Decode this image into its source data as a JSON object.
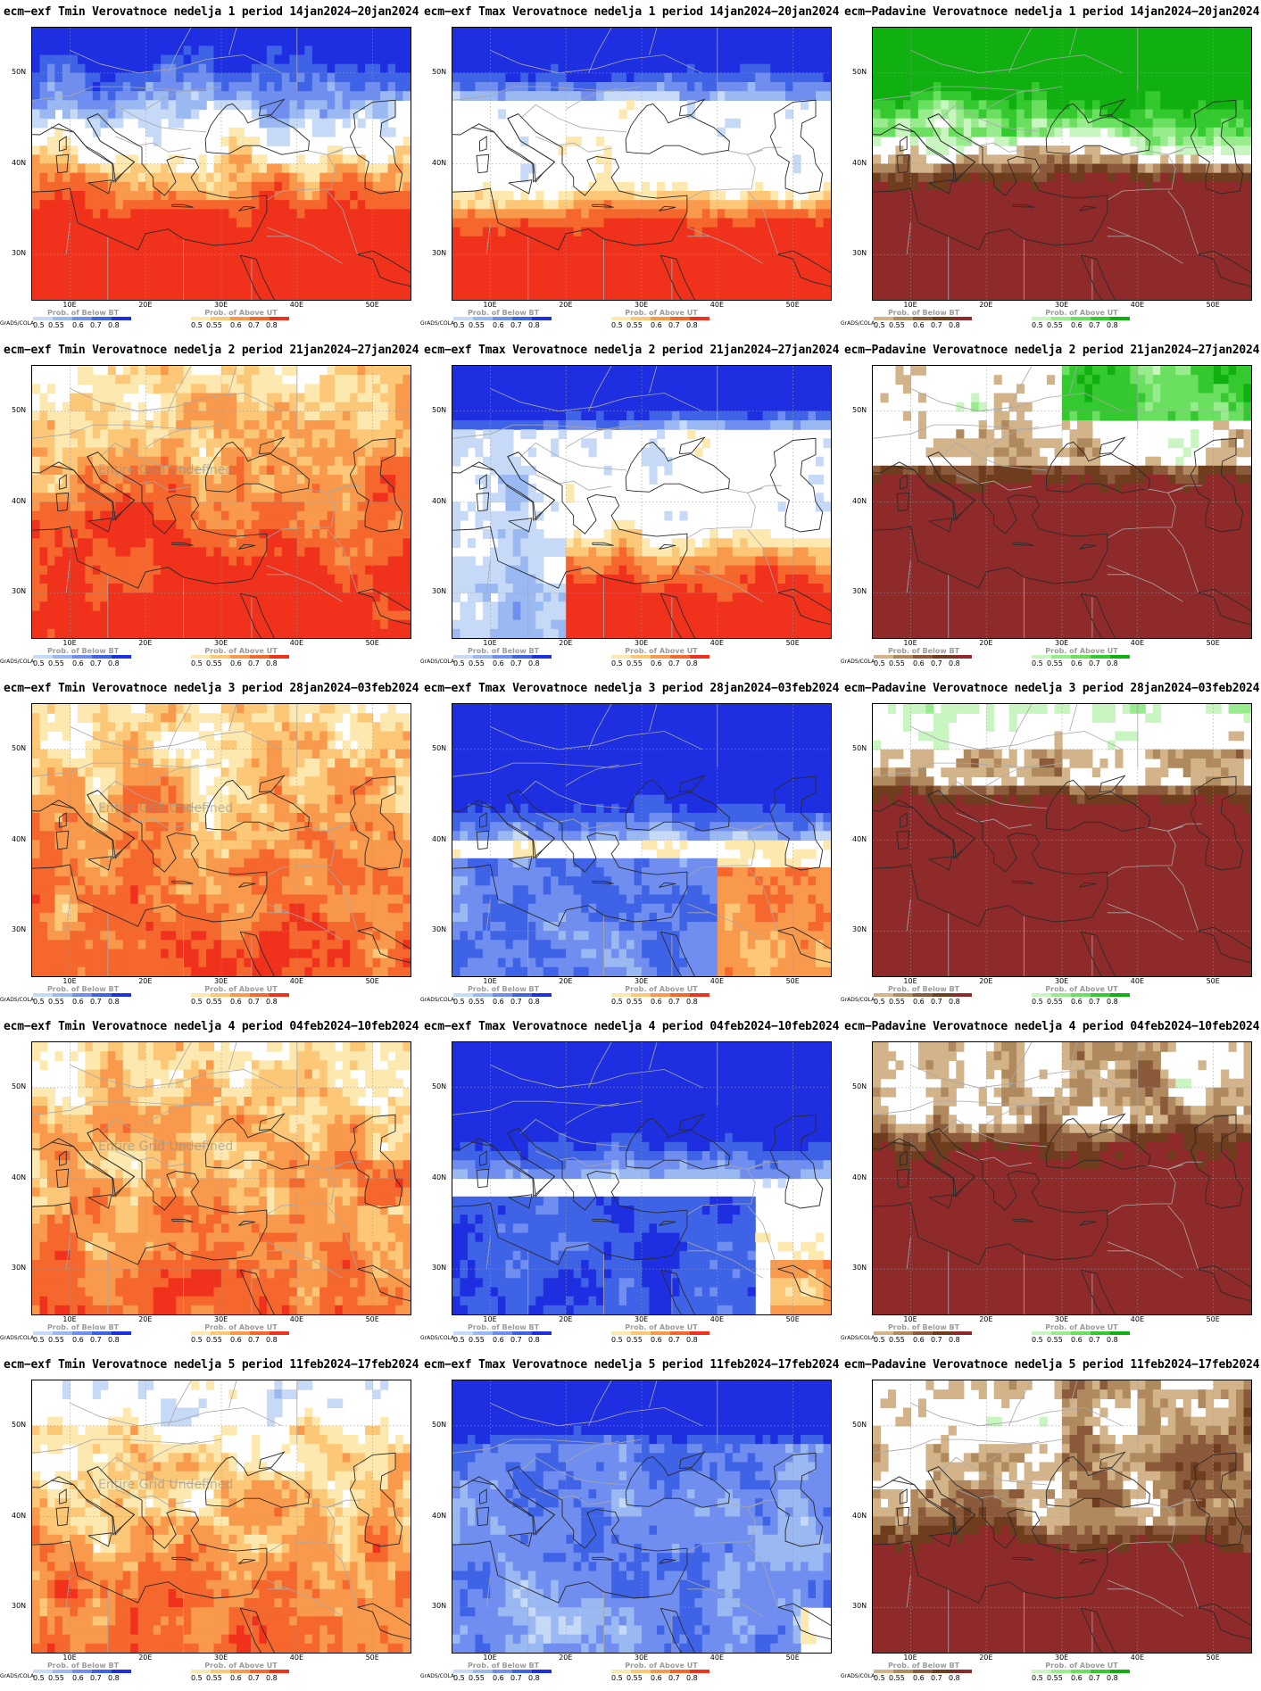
{
  "page": {
    "panels": [
      {
        "title": "ecm−exf Tmin Verovatnoce nedelja 1 period 14jan2024−20jan2024",
        "field": "tmin",
        "week": 1
      },
      {
        "title": "ecm−exf Tmax Verovatnoce nedelja 1 period 14jan2024−20jan2024",
        "field": "tmax",
        "week": 1
      },
      {
        "title": "ecm−Padavine Verovatnoce nedelja 1 period 14jan2024−20jan2024",
        "field": "precip",
        "week": 1
      },
      {
        "title": "ecm−exf Tmin Verovatnoce nedelja 2 period 21jan2024−27jan2024",
        "field": "tmin",
        "week": 2,
        "note": "Entire Grid Undefined"
      },
      {
        "title": "ecm−exf Tmax Verovatnoce nedelja 2 period 21jan2024−27jan2024",
        "field": "tmax",
        "week": 2
      },
      {
        "title": "ecm−Padavine Verovatnoce nedelja 2 period 21jan2024−27jan2024",
        "field": "precip",
        "week": 2
      },
      {
        "title": "ecm−exf Tmin Verovatnoce nedelja 3 period 28jan2024−03feb2024",
        "field": "tmin",
        "week": 3,
        "note": "Entire Grid Undefined"
      },
      {
        "title": "ecm−exf Tmax Verovatnoce nedelja 3 period 28jan2024−03feb2024",
        "field": "tmax",
        "week": 3
      },
      {
        "title": "ecm−Padavine Verovatnoce nedelja 3 period 28jan2024−03feb2024",
        "field": "precip",
        "week": 3
      },
      {
        "title": "ecm−exf Tmin Verovatnoce nedelja 4 period 04feb2024−10feb2024",
        "field": "tmin",
        "week": 4,
        "note": "Entire Grid Undefined"
      },
      {
        "title": "ecm−exf Tmax Verovatnoce nedelja 4 period 04feb2024−10feb2024",
        "field": "tmax",
        "week": 4
      },
      {
        "title": "ecm−Padavine Verovatnoce nedelja 4 period 04feb2024−10feb2024",
        "field": "precip",
        "week": 4
      },
      {
        "title": "ecm−exf Tmin Verovatnoce nedelja 5 period 11feb2024−17feb2024",
        "field": "tmin",
        "week": 5,
        "note": "Entire Grid Undefined"
      },
      {
        "title": "ecm−exf Tmax Verovatnoce nedelja 5 period 11feb2024−17feb2024",
        "field": "tmax",
        "week": 5
      },
      {
        "title": "ecm−Padavine Verovatnoce nedelja 5 period 11feb2024−17feb2024",
        "field": "precip",
        "week": 5
      }
    ],
    "lat_labels": [
      "50N",
      "40N",
      "30N"
    ],
    "lon_labels": [
      "10E",
      "20E",
      "30E",
      "40E",
      "50E"
    ],
    "legend_below_title": "Prob. of Below BT",
    "legend_above_title": "Prob. of Above UT",
    "legend_ticks": [
      "0.5",
      "0.55",
      "0.6",
      "0.7",
      "0.8"
    ],
    "credit": "GrADS/COLA",
    "colors": {
      "below_temp": [
        "#c6d9f7",
        "#9ab8f2",
        "#6f8ef0",
        "#3f63e6",
        "#1d2fe0"
      ],
      "above_temp": [
        "#fde9b0",
        "#fcc777",
        "#f9994c",
        "#f5672d",
        "#f0321c"
      ],
      "below_precip": [
        "#d3b48a",
        "#b08a5e",
        "#8b5a3a",
        "#6e3d1e",
        "#8f2a2a"
      ],
      "above_precip": [
        "#c8f5c0",
        "#98ec8e",
        "#6be060",
        "#33c92f",
        "#10b010"
      ]
    }
  }
}
